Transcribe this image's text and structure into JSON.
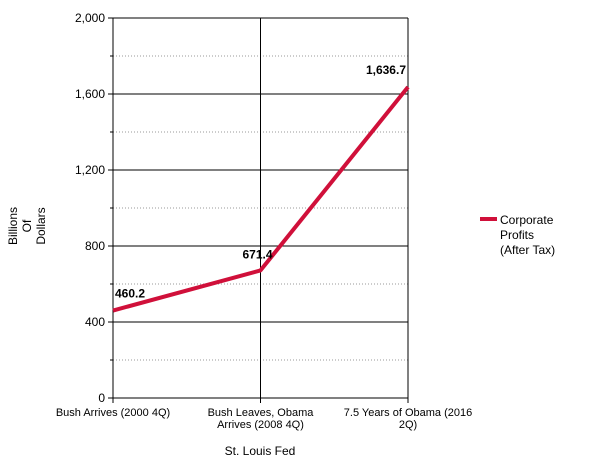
{
  "chart_data": {
    "type": "line",
    "categories": [
      [
        "Bush Arrives (2000 4Q)"
      ],
      [
        "Bush Leaves, Obama",
        "Arrives (2008 4Q)"
      ],
      [
        "7.5 Years of Obama (2016",
        "2Q)"
      ]
    ],
    "series": [
      {
        "name": [
          "Corporate",
          "Profits",
          "(After Tax)"
        ],
        "values": [
          460.2,
          671.4,
          1636.7
        ],
        "data_labels": [
          "460.2",
          "671.4",
          "1,636.7"
        ],
        "color": "#d0103a"
      }
    ],
    "xlabel": "St. Louis Fed",
    "ylabel": [
      "Billions",
      "Of",
      "Dollars"
    ],
    "ylim": [
      0,
      2000
    ],
    "yticks": [
      0,
      400,
      800,
      1200,
      1600,
      2000
    ],
    "ytick_labels": [
      "0",
      "400",
      "800",
      "1,200",
      "1,600",
      "2,000"
    ],
    "grid": true,
    "legend_position": "right"
  }
}
